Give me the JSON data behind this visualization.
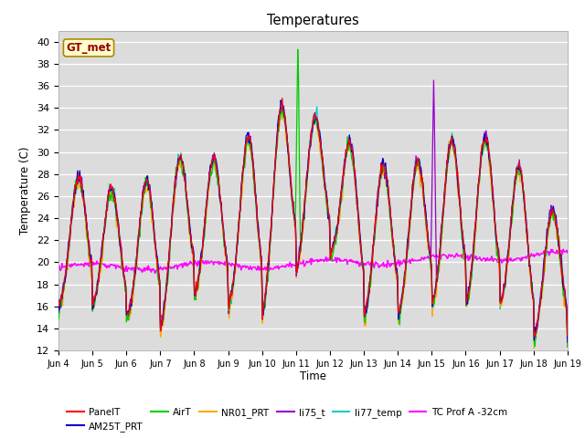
{
  "title": "Temperatures",
  "xlabel": "Time",
  "ylabel": "Temperature (C)",
  "ylim": [
    12,
    41
  ],
  "yticks": [
    12,
    14,
    16,
    18,
    20,
    22,
    24,
    26,
    28,
    30,
    32,
    34,
    36,
    38,
    40
  ],
  "bg_color": "#dcdcdc",
  "fig_bg": "#ffffff",
  "annotation_text": "GT_met",
  "annotation_color": "#990000",
  "annotation_bg": "#ffffcc",
  "annotation_border": "#aa8800",
  "series_colors": {
    "PanelT": "#ff0000",
    "AM25T_PRT": "#0000cc",
    "AirT": "#00cc00",
    "NR01_PRT": "#ffaa00",
    "li75_t": "#9900cc",
    "li77_temp": "#00cccc",
    "TC Prof A -32cm": "#ff00ff"
  },
  "tick_labels": [
    "Jun 4",
    "Jun 5",
    "Jun 6",
    "Jun 7",
    "Jun 8",
    "Jun 9",
    "Jun 10",
    "Jun 11",
    "Jun 12",
    "Jun 13",
    "Jun 14",
    "Jun 15",
    "Jun 16",
    "Jun 17",
    "Jun 18",
    "Jun 19"
  ],
  "n_points": 720
}
